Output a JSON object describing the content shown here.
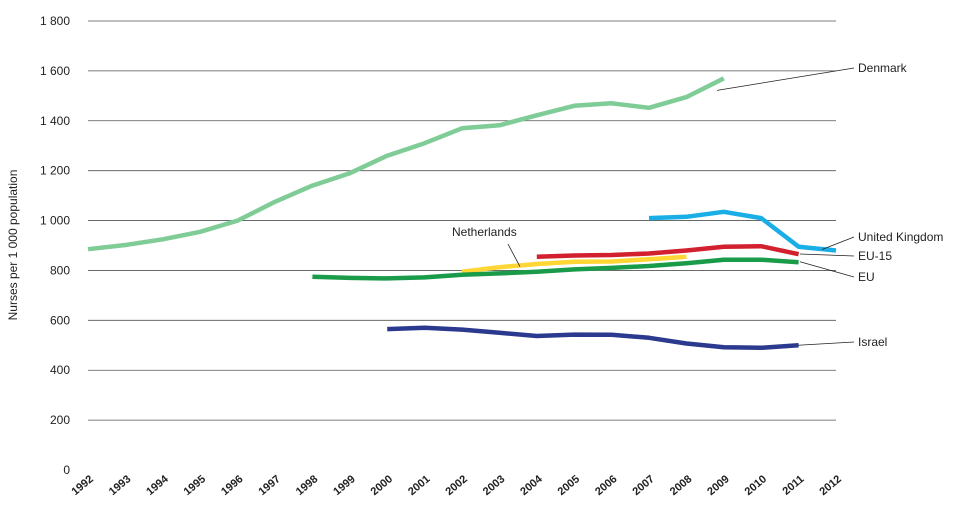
{
  "chart_data": {
    "type": "line",
    "title": "",
    "xlabel": "",
    "ylabel": "Nurses per 1 000 population",
    "ylim": [
      0,
      1800
    ],
    "yticks": [
      0,
      200,
      400,
      600,
      800,
      1000,
      1200,
      1400,
      1600,
      1800
    ],
    "ytick_labels": [
      "0",
      "200",
      "400",
      "600",
      "800",
      "1 000",
      "1 200",
      "1 400",
      "1 600",
      "1 800"
    ],
    "x_categories": [
      "1992",
      "1993",
      "1994",
      "1995",
      "1996",
      "1997",
      "1998",
      "1999",
      "2000",
      "2001",
      "2002",
      "2003",
      "2004",
      "2005",
      "2006",
      "2007",
      "2008",
      "2009",
      "2010",
      "2011",
      "2012"
    ],
    "grid": true,
    "legend": "direct labels at right of lines",
    "series": [
      {
        "name": "Denmark",
        "color": "#7fcc97",
        "x": [
          1992,
          1993,
          1994,
          1995,
          1996,
          1997,
          1998,
          1999,
          2000,
          2001,
          2002,
          2003,
          2004,
          2005,
          2006,
          2007,
          2008,
          2009
        ],
        "values": [
          885,
          902,
          925,
          955,
          1000,
          1075,
          1140,
          1190,
          1260,
          1310,
          1370,
          1382,
          1422,
          1460,
          1470,
          1452,
          1495,
          1570
        ]
      },
      {
        "name": "United Kingdom",
        "color": "#1aaee6",
        "x": [
          2007,
          2008,
          2009,
          2010,
          2011,
          2012
        ],
        "values": [
          1010,
          1015,
          1035,
          1010,
          895,
          880
        ]
      },
      {
        "name": "EU-15",
        "color": "#d2202e",
        "x": [
          2004,
          2005,
          2006,
          2007,
          2008,
          2009,
          2010,
          2011
        ],
        "values": [
          855,
          860,
          862,
          868,
          880,
          895,
          897,
          865
        ]
      },
      {
        "name": "Netherlands",
        "color": "#ffd633",
        "x": [
          2002,
          2003,
          2004,
          2005,
          2006,
          2007,
          2008
        ],
        "values": [
          795,
          813,
          826,
          835,
          836,
          845,
          855
        ]
      },
      {
        "name": "EU",
        "color": "#1a9b4a",
        "x": [
          1998,
          1999,
          2000,
          2001,
          2002,
          2003,
          2004,
          2005,
          2006,
          2007,
          2008,
          2009,
          2010,
          2011
        ],
        "values": [
          775,
          770,
          768,
          772,
          783,
          788,
          795,
          804,
          810,
          818,
          829,
          843,
          843,
          833
        ]
      },
      {
        "name": "Israel",
        "color": "#2b3a8e",
        "x": [
          2000,
          2001,
          2002,
          2003,
          2004,
          2005,
          2006,
          2007,
          2008,
          2009,
          2010,
          2011
        ],
        "values": [
          565,
          570,
          563,
          550,
          537,
          543,
          542,
          530,
          507,
          492,
          490,
          500
        ]
      }
    ],
    "annotations": [
      {
        "label": "Denmark",
        "series": "Denmark"
      },
      {
        "label": "United Kingdom",
        "series": "United Kingdom"
      },
      {
        "label": "EU-15",
        "series": "EU-15"
      },
      {
        "label": "EU",
        "series": "EU"
      },
      {
        "label": "Israel",
        "series": "Israel"
      },
      {
        "label": "Netherlands",
        "series": "Netherlands"
      }
    ]
  }
}
